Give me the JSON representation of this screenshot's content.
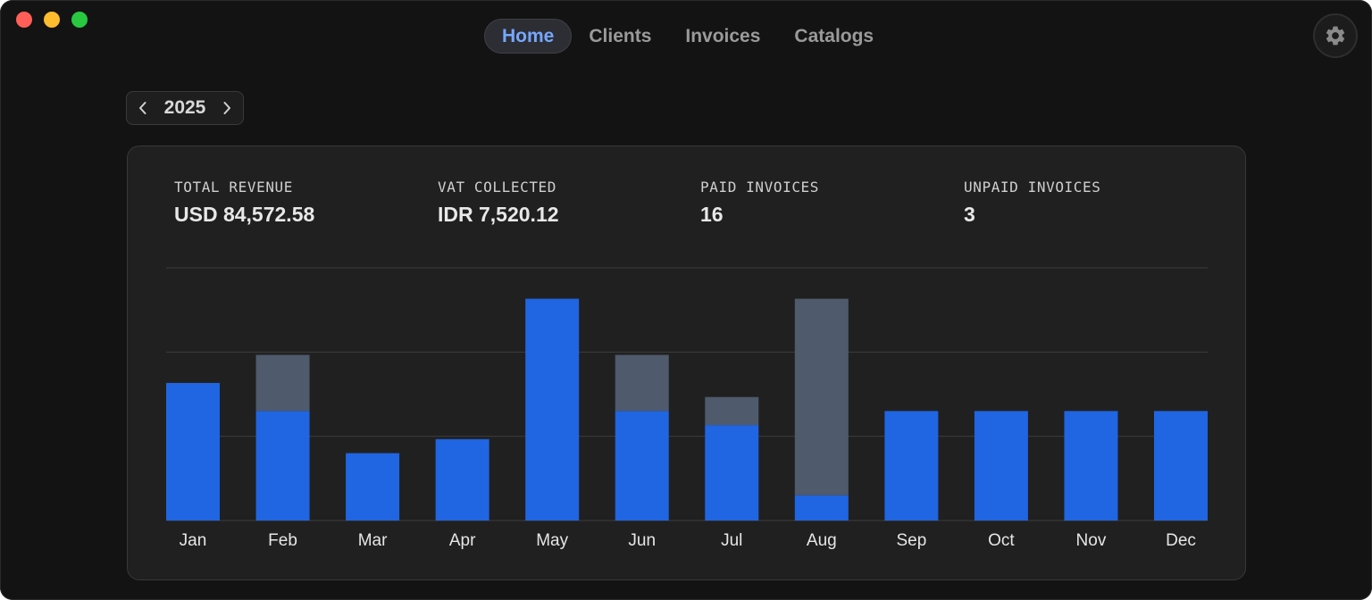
{
  "window": {
    "traffic_lights": [
      "close",
      "minimize",
      "zoom"
    ]
  },
  "nav": {
    "tabs": [
      {
        "label": "Home",
        "active": true
      },
      {
        "label": "Clients",
        "active": false
      },
      {
        "label": "Invoices",
        "active": false
      },
      {
        "label": "Catalogs",
        "active": false
      }
    ],
    "settings_icon": "gear-icon"
  },
  "year_picker": {
    "prev_icon": "chevron-left-icon",
    "year": "2025",
    "next_icon": "chevron-right-icon"
  },
  "stats": [
    {
      "label": "TOTAL REVENUE",
      "value": "USD 84,572.58"
    },
    {
      "label": "VAT COLLECTED",
      "value": "IDR 7,520.12"
    },
    {
      "label": "PAID INVOICES",
      "value": "16"
    },
    {
      "label": "UNPAID INVOICES",
      "value": "3"
    }
  ],
  "colors": {
    "paid": "#2065e2",
    "unpaid": "#4f5a6c",
    "accent": "#76a7ff"
  },
  "chart_data": {
    "type": "bar",
    "stacked": true,
    "categories": [
      "Jan",
      "Feb",
      "Mar",
      "Apr",
      "May",
      "Jun",
      "Jul",
      "Aug",
      "Sep",
      "Oct",
      "Nov",
      "Dec"
    ],
    "series": [
      {
        "values": [
          4.9,
          3.9,
          2.4,
          2.9,
          7.9,
          3.9,
          3.4,
          0.9,
          3.9,
          3.9,
          3.9,
          3.9
        ]
      },
      {
        "values": [
          0,
          2.0,
          0,
          0,
          0,
          2.0,
          1.0,
          7.0,
          0,
          0,
          0,
          0
        ]
      }
    ],
    "ylim": [
      0,
      9
    ],
    "grid": true
  }
}
